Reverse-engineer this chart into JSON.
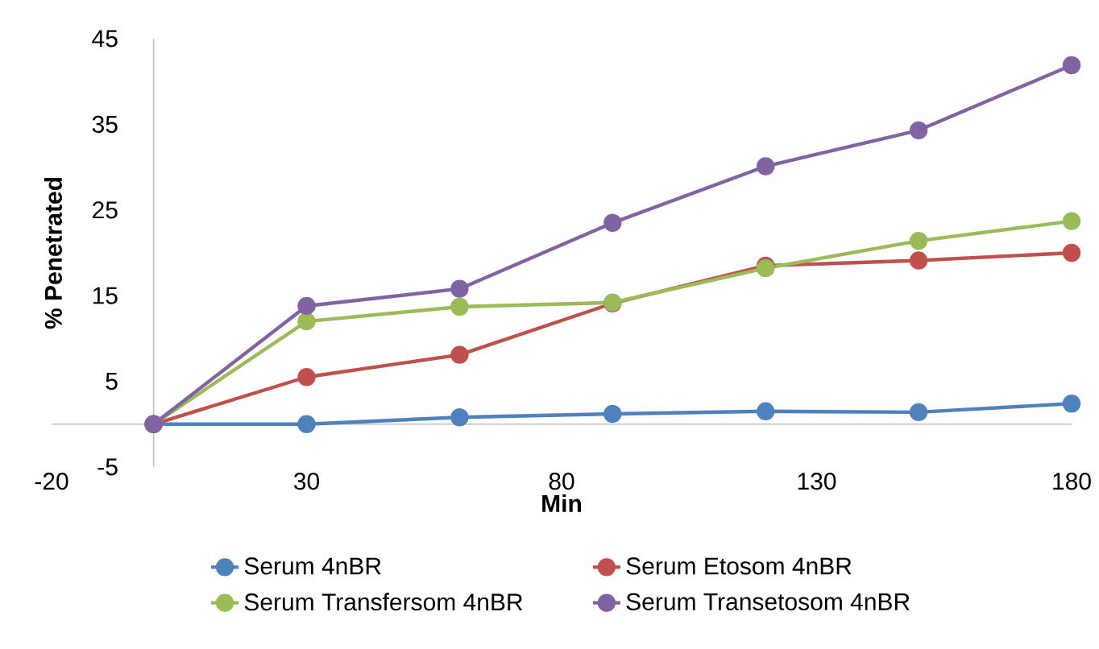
{
  "chart_data": {
    "type": "line",
    "xlabel": "Min",
    "ylabel": "% Penetrated",
    "x": [
      0,
      30,
      60,
      90,
      120,
      150,
      180
    ],
    "xlim": [
      -20,
      180
    ],
    "xticks": [
      -20,
      30,
      80,
      130,
      180
    ],
    "ylim": [
      -5,
      45
    ],
    "yticks": [
      -5,
      5,
      15,
      25,
      35,
      45
    ],
    "legend": "bottom",
    "marker": "circle",
    "series": [
      {
        "name": "Serum 4nBR",
        "color": "#4f81bd",
        "values": [
          0,
          0,
          0.8,
          1.2,
          1.5,
          1.4,
          2.4
        ]
      },
      {
        "name": "Serum Etosom 4nBR",
        "color": "#c0504d",
        "values": [
          0,
          5.5,
          8.1,
          14.1,
          18.5,
          19.1,
          20.0
        ]
      },
      {
        "name": "Serum Transfersom 4nBR",
        "color": "#9bbb59",
        "values": [
          0,
          12.0,
          13.7,
          14.2,
          18.2,
          21.4,
          23.7
        ]
      },
      {
        "name": "Serum Transetosom 4nBR",
        "color": "#8064a2",
        "values": [
          0,
          13.8,
          15.8,
          23.5,
          30.1,
          34.3,
          41.9
        ]
      }
    ]
  }
}
